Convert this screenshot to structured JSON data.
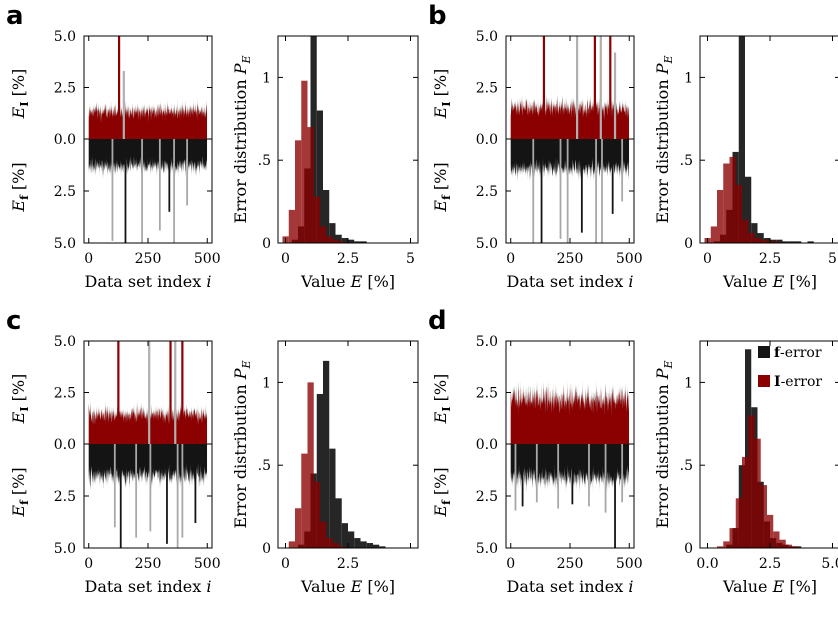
{
  "figure": {
    "colors": {
      "f_error": "#141414",
      "I_error": "#8b0000",
      "f_error_light": "#a8a8a8",
      "I_error_light": "#b0b0b0"
    },
    "legend": {
      "f_label_bold": "f",
      "f_label_rest": "-error",
      "I_label_bold": "I",
      "I_label_rest": "-error"
    }
  },
  "chart_data": [
    {
      "panel": "a",
      "type": "bar",
      "trace": {
        "xlabel": "Data set index i",
        "xticks": [
          "0",
          "250",
          "500"
        ],
        "yticks_top": [
          "5.0",
          "2.5",
          "0.0"
        ],
        "yticks_bottom": [
          "2.5",
          "5.0"
        ],
        "ylabel_top": "E_I [%]",
        "ylabel_bottom": "E_f [%]",
        "xlim": [
          -20,
          520
        ],
        "ylim_top": [
          0,
          5
        ],
        "ylim_bottom": [
          0,
          5
        ],
        "I_error_mean": 1.3,
        "I_error_max": 3.2,
        "f_error_mean": 1.3,
        "f_error_max": 2.6,
        "outliers_top": [
          [
            128,
            5.0
          ],
          [
            148,
            3.3
          ]
        ],
        "outliers_bottom": [
          [
            100,
            4.9
          ],
          [
            155,
            5.0
          ],
          [
            225,
            5.0
          ],
          [
            300,
            4.4
          ],
          [
            340,
            3.5
          ],
          [
            360,
            5.0
          ],
          [
            415,
            3.2
          ]
        ]
      },
      "hist": {
        "xlabel": "Value E [%]",
        "ylabel": "Error distribution P_E",
        "xticks": [
          "0",
          "2.5",
          "5"
        ],
        "yticks": [
          "0",
          ".5",
          "1"
        ],
        "xlim": [
          -0.3,
          5.3
        ],
        "ylim": [
          0,
          1.25
        ],
        "bin_width": 0.25,
        "bins_start": 0.0,
        "f_values": [
          0.0,
          0.02,
          0.1,
          0.45,
          1.25,
          0.8,
          0.32,
          0.12,
          0.05,
          0.03,
          0.02,
          0.01,
          0.01,
          0.0
        ],
        "I_values": [
          0.04,
          0.2,
          0.62,
          0.98,
          0.7,
          0.28,
          0.1,
          0.04,
          0.02,
          0.01,
          0.0,
          0.0,
          0.0,
          0.0
        ]
      }
    },
    {
      "panel": "b",
      "type": "bar",
      "trace": {
        "xlabel": "Data set index i",
        "xticks": [
          "0",
          "250",
          "500"
        ],
        "yticks_top": [
          "5.0",
          "2.5",
          "0.0"
        ],
        "yticks_bottom": [
          "2.5",
          "5.0"
        ],
        "ylabel_top": "E_I [%]",
        "ylabel_bottom": "E_f [%]",
        "xlim": [
          -20,
          520
        ],
        "ylim_top": [
          0,
          5
        ],
        "ylim_bottom": [
          0,
          5
        ],
        "I_error_mean": 1.5,
        "I_error_max": 3.6,
        "f_error_mean": 1.4,
        "f_error_max": 2.8,
        "outliers_top": [
          [
            140,
            5.0
          ],
          [
            280,
            5.0
          ],
          [
            355,
            5.0
          ],
          [
            380,
            5.0
          ],
          [
            420,
            5.0
          ],
          [
            440,
            4.2
          ]
        ],
        "outliers_bottom": [
          [
            95,
            5.0
          ],
          [
            130,
            5.0
          ],
          [
            210,
            4.8
          ],
          [
            240,
            5.0
          ],
          [
            300,
            4.5
          ],
          [
            360,
            5.0
          ],
          [
            385,
            5.0
          ],
          [
            430,
            3.6
          ],
          [
            470,
            3.0
          ]
        ]
      },
      "hist": {
        "xlabel": "Value E [%]",
        "ylabel": "Error distribution P_E",
        "xticks": [
          "0",
          "2.5",
          "5"
        ],
        "yticks": [
          "0",
          ".5",
          "1"
        ],
        "xlim": [
          -0.3,
          5.3
        ],
        "ylim": [
          0,
          1.25
        ],
        "bin_width": 0.25,
        "bins_start": 0.0,
        "f_values": [
          0.0,
          0.01,
          0.05,
          0.2,
          0.55,
          1.25,
          0.4,
          0.12,
          0.06,
          0.03,
          0.02,
          0.02,
          0.01,
          0.01,
          0.01,
          0.0,
          0.01
        ],
        "I_values": [
          0.03,
          0.1,
          0.32,
          0.48,
          0.52,
          0.35,
          0.14,
          0.06,
          0.03,
          0.02,
          0.01,
          0.01,
          0.0,
          0.0,
          0.0,
          0.0,
          0.0
        ]
      }
    },
    {
      "panel": "c",
      "type": "bar",
      "trace": {
        "xlabel": "Data set index i",
        "xticks": [
          "0",
          "250",
          "500"
        ],
        "yticks_top": [
          "5.0",
          "2.5",
          "0.0"
        ],
        "yticks_bottom": [
          "2.5",
          "5.0"
        ],
        "ylabel_top": "E_I [%]",
        "ylabel_bottom": "E_f [%]",
        "xlim": [
          -20,
          520
        ],
        "ylim_top": [
          0,
          5
        ],
        "ylim_bottom": [
          0,
          5
        ],
        "I_error_mean": 1.4,
        "I_error_max": 3.0,
        "f_error_mean": 1.5,
        "f_error_max": 2.9,
        "outliers_top": [
          [
            125,
            5.0
          ],
          [
            255,
            5.0
          ],
          [
            345,
            5.0
          ],
          [
            365,
            5.0
          ],
          [
            395,
            5.0
          ]
        ],
        "outliers_bottom": [
          [
            110,
            4.0
          ],
          [
            135,
            5.0
          ],
          [
            200,
            4.5
          ],
          [
            260,
            4.2
          ],
          [
            330,
            4.8
          ],
          [
            375,
            5.0
          ],
          [
            395,
            4.5
          ],
          [
            450,
            3.8
          ]
        ]
      },
      "hist": {
        "xlabel": "Value E [%]",
        "ylabel": "Error distribution P_E",
        "xticks": [
          "0",
          "2.5",
          ""
        ],
        "yticks": [
          "0",
          ".5",
          "1"
        ],
        "xlim": [
          -0.3,
          5.3
        ],
        "ylim": [
          0,
          1.25
        ],
        "bin_width": 0.25,
        "bins_start": 0.25,
        "f_values": [
          0.0,
          0.02,
          0.1,
          0.45,
          0.93,
          1.13,
          0.6,
          0.3,
          0.15,
          0.1,
          0.06,
          0.04,
          0.03,
          0.02,
          0.01
        ],
        "I_values": [
          0.04,
          0.24,
          0.57,
          1.0,
          0.4,
          0.16,
          0.06,
          0.03,
          0.01,
          0.0,
          0.0,
          0.0,
          0.0,
          0.0,
          0.0
        ]
      }
    },
    {
      "panel": "d",
      "type": "bar",
      "trace": {
        "xlabel": "Data set index i",
        "xticks": [
          "0",
          "250",
          "500"
        ],
        "yticks_top": [
          "5.0",
          "2.5",
          "0.0"
        ],
        "yticks_bottom": [
          "2.5",
          "5.0"
        ],
        "ylabel_top": "E_I [%]",
        "ylabel_bottom": "E_f [%]",
        "xlim": [
          -20,
          520
        ],
        "ylim_top": [
          0,
          5
        ],
        "ylim_bottom": [
          0,
          5
        ],
        "I_error_mean": 2.1,
        "I_error_max": 2.9,
        "f_error_mean": 1.6,
        "f_error_max": 2.6,
        "outliers_top": [],
        "outliers_bottom": [
          [
            20,
            3.2
          ],
          [
            50,
            3.0
          ],
          [
            110,
            2.8
          ],
          [
            200,
            3.1
          ],
          [
            260,
            2.9
          ],
          [
            330,
            3.0
          ],
          [
            400,
            3.3
          ],
          [
            440,
            5.0
          ],
          [
            470,
            2.8
          ]
        ]
      },
      "hist": {
        "xlabel": "Value E [%]",
        "ylabel": "Error distribution P_E",
        "xticks": [
          "0.0",
          "2.5",
          "5.0"
        ],
        "yticks": [
          "0",
          ".5",
          "1"
        ],
        "xlim": [
          -0.3,
          5.3
        ],
        "ylim": [
          0,
          1.25
        ],
        "bin_width": 0.25,
        "bins_start": 0.5,
        "f_values": [
          0.0,
          0.02,
          0.12,
          0.5,
          1.2,
          0.85,
          0.4,
          0.16,
          0.06,
          0.03,
          0.02,
          0.01,
          0.01
        ],
        "I_values": [
          0.01,
          0.04,
          0.12,
          0.3,
          0.55,
          0.8,
          0.66,
          0.38,
          0.2,
          0.1,
          0.05,
          0.02,
          0.01
        ]
      }
    }
  ]
}
